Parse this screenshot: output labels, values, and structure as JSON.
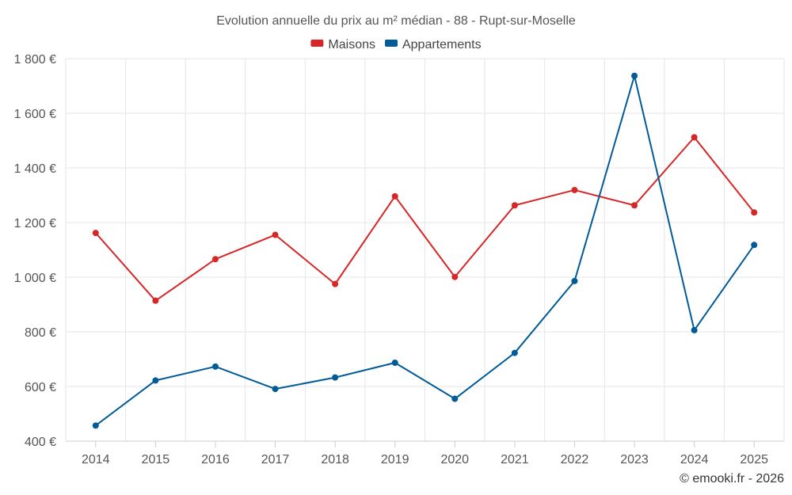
{
  "chart_data": {
    "type": "line",
    "title": "Evolution annuelle du prix au m² médian - 88 - Rupt-sur-Moselle",
    "categories": [
      "2014",
      "2015",
      "2016",
      "2017",
      "2018",
      "2019",
      "2020",
      "2021",
      "2022",
      "2023",
      "2024",
      "2025"
    ],
    "series": [
      {
        "name": "Maisons",
        "color": "#d62728",
        "values": [
          1162,
          914,
          1066,
          1155,
          975,
          1296,
          1001,
          1263,
          1319,
          1263,
          1512,
          1237
        ]
      },
      {
        "name": "Appartements",
        "color": "#005b96",
        "values": [
          457,
          622,
          673,
          591,
          633,
          687,
          555,
          723,
          986,
          1737,
          806,
          1118
        ]
      }
    ],
    "ylim": [
      400,
      1800
    ],
    "yticks": [
      400,
      600,
      800,
      1000,
      1200,
      1400,
      1600,
      1800
    ],
    "ytick_labels": [
      "400 €",
      "600 €",
      "800 €",
      "1 000 €",
      "1 200 €",
      "1 400 €",
      "1 600 €",
      "1 800 €"
    ],
    "xlabel": "",
    "ylabel": "",
    "grid": true,
    "legend": "top-center",
    "credit": "© emooki.fr - 2026"
  }
}
